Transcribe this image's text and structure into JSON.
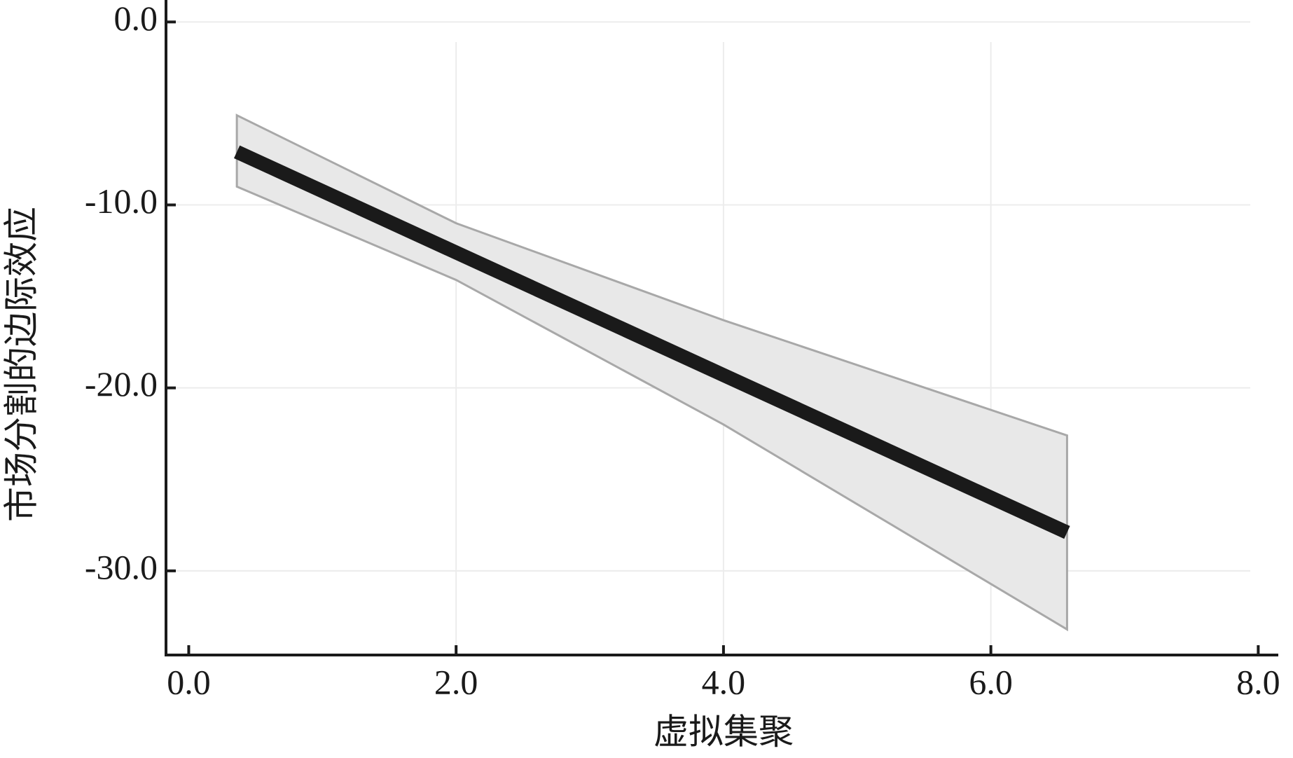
{
  "chart_data": {
    "type": "line",
    "x_label": "虚拟集聚",
    "y_label": "市场分割的边际效应",
    "x": [
      0.36,
      2,
      4,
      6.57
    ],
    "series": [
      {
        "color": "#1a1a1a",
        "values": [
          -7.1,
          -12.6,
          -19.3,
          -27.9
        ],
        "upper": [
          -5.1,
          -11.0,
          -16.3,
          -22.6
        ],
        "lower": [
          -9.0,
          -14.1,
          -22.0,
          -33.2
        ],
        "band_color": "#e8e8e8"
      }
    ],
    "xlim": [
      -0.17,
      8.15
    ],
    "ylim": [
      -34.6,
      1.2
    ],
    "xticks": [
      {
        "value": 0,
        "label": "0.0"
      },
      {
        "value": 2,
        "label": "2.0"
      },
      {
        "value": 4,
        "label": "4.0"
      },
      {
        "value": 6,
        "label": "6.0"
      },
      {
        "value": 8,
        "label": "8.0"
      }
    ],
    "yticks": [
      {
        "value": 0,
        "label": "0.0"
      },
      {
        "value": -10,
        "label": "-10.0"
      },
      {
        "value": -20,
        "label": "-20.0"
      },
      {
        "value": -30,
        "label": "-30.0"
      }
    ],
    "grid": true
  }
}
